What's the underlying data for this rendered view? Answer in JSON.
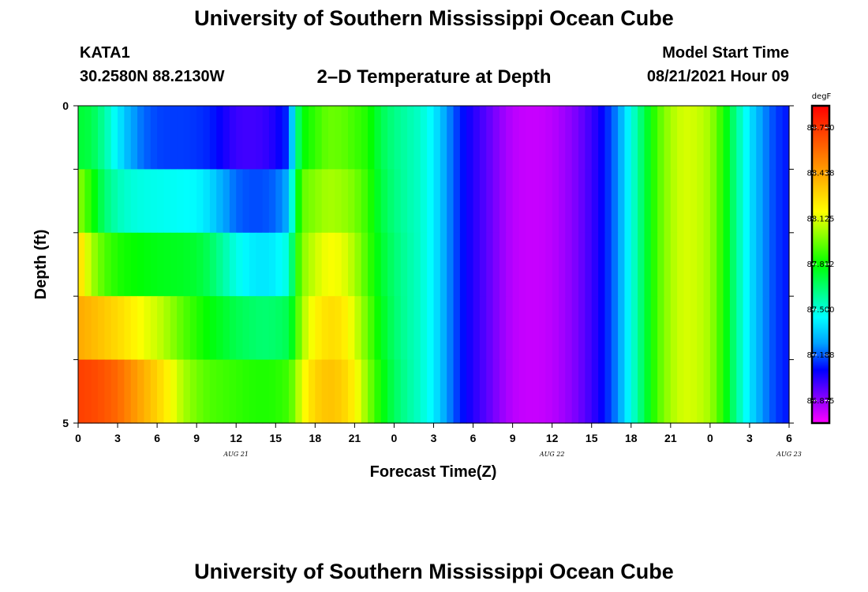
{
  "header": {
    "title": "University of Southern Mississippi Ocean Cube",
    "station_id": "KATA1",
    "coords": "30.2580N  88.2130W",
    "plot_title": "2–D Temperature at Depth",
    "model_start_label": "Model Start Time",
    "model_start_value": "08/21/2021 Hour 09"
  },
  "footer": {
    "title": "University of Southern Mississippi Ocean Cube"
  },
  "chart_data": {
    "type": "heatmap",
    "title": "2–D Temperature at Depth",
    "xlabel": "Forecast Time(Z)",
    "ylabel": "Depth (ft)",
    "x_tick_labels": [
      "0",
      "3",
      "6",
      "9",
      "12",
      "15",
      "18",
      "21",
      "0",
      "3",
      "6",
      "9",
      "12",
      "15",
      "18",
      "21",
      "0",
      "3",
      "6"
    ],
    "x_date_labels": [
      {
        "label": "AUG  21",
        "hour": 12
      },
      {
        "label": "AUG  22",
        "hour": 36
      },
      {
        "label": "AUG  23",
        "hour": 54
      }
    ],
    "x_range_hours": [
      0,
      54
    ],
    "y_tick_labels": [
      "0",
      "5"
    ],
    "y_range": [
      0,
      5
    ],
    "colorbar": {
      "unit": "degF",
      "min": 86.72,
      "max": 88.9,
      "labels": [
        "88.750",
        "88.438",
        "88.125",
        "87.812",
        "87.500",
        "87.188",
        "86.875"
      ],
      "colors": [
        "#ff00ff",
        "#8000ff",
        "#0000ff",
        "#00a0ff",
        "#00ffff",
        "#00ff80",
        "#00ff00",
        "#80ff00",
        "#ffff00",
        "#ffc000",
        "#ff8000",
        "#ff4000",
        "#ff0000"
      ]
    },
    "layers": [
      {
        "depth": 0.5,
        "points": [
          [
            0,
            87.74
          ],
          [
            1,
            87.71
          ],
          [
            2,
            87.58
          ],
          [
            3,
            87.42
          ],
          [
            4,
            87.28
          ],
          [
            5,
            87.2
          ],
          [
            6,
            87.16
          ],
          [
            7,
            87.15
          ],
          [
            8,
            87.15
          ],
          [
            9,
            87.14
          ],
          [
            10,
            87.12
          ],
          [
            11,
            87.06
          ],
          [
            12,
            87.0
          ],
          [
            13,
            86.99
          ],
          [
            14,
            87.0
          ],
          [
            15,
            87.05
          ],
          [
            16,
            87.14
          ],
          [
            16.5,
            87.55
          ],
          [
            17,
            87.8
          ],
          [
            18,
            87.88
          ],
          [
            19,
            87.96
          ],
          [
            20,
            87.95
          ],
          [
            21,
            87.9
          ],
          [
            22,
            87.85
          ],
          [
            23,
            87.7
          ],
          [
            24,
            87.62
          ],
          [
            25,
            87.57
          ],
          [
            26,
            87.52
          ],
          [
            27,
            87.42
          ],
          [
            28,
            87.26
          ],
          [
            29,
            87.12
          ],
          [
            30,
            87.03
          ],
          [
            31,
            86.96
          ],
          [
            32,
            86.88
          ],
          [
            33,
            86.82
          ],
          [
            34,
            86.8
          ],
          [
            35,
            86.8
          ],
          [
            36,
            86.82
          ],
          [
            37,
            86.86
          ],
          [
            38,
            86.92
          ],
          [
            39,
            87.0
          ],
          [
            40,
            87.1
          ],
          [
            41,
            87.25
          ],
          [
            42,
            87.48
          ],
          [
            43,
            87.7
          ],
          [
            44,
            87.92
          ],
          [
            45,
            88.05
          ],
          [
            46,
            88.12
          ],
          [
            47,
            88.1
          ],
          [
            48,
            88.04
          ],
          [
            49,
            87.85
          ],
          [
            50,
            87.6
          ],
          [
            51,
            87.4
          ],
          [
            52,
            87.25
          ],
          [
            53,
            87.15
          ],
          [
            54,
            87.1
          ]
        ]
      },
      {
        "depth": 1.5,
        "points": [
          [
            0,
            88.02
          ],
          [
            1,
            87.85
          ],
          [
            2,
            87.65
          ],
          [
            3,
            87.55
          ],
          [
            4,
            87.5
          ],
          [
            5,
            87.48
          ],
          [
            6,
            87.47
          ],
          [
            7,
            87.46
          ],
          [
            8,
            87.45
          ],
          [
            9,
            87.44
          ],
          [
            10,
            87.38
          ],
          [
            11,
            87.28
          ],
          [
            12,
            87.2
          ],
          [
            13,
            87.17
          ],
          [
            14,
            87.17
          ],
          [
            15,
            87.2
          ],
          [
            16,
            87.3
          ],
          [
            16.5,
            87.7
          ],
          [
            17,
            87.95
          ],
          [
            18,
            88.0
          ],
          [
            19,
            88.05
          ],
          [
            20,
            88.03
          ],
          [
            21,
            87.98
          ],
          [
            22,
            87.88
          ],
          [
            23,
            87.72
          ],
          [
            24,
            87.63
          ],
          [
            25,
            87.57
          ],
          [
            26,
            87.52
          ],
          [
            27,
            87.42
          ],
          [
            28,
            87.26
          ],
          [
            29,
            87.12
          ],
          [
            30,
            87.03
          ],
          [
            31,
            86.96
          ],
          [
            32,
            86.88
          ],
          [
            33,
            86.82
          ],
          [
            34,
            86.8
          ],
          [
            35,
            86.8
          ],
          [
            36,
            86.82
          ],
          [
            37,
            86.86
          ],
          [
            38,
            86.92
          ],
          [
            39,
            87.0
          ],
          [
            40,
            87.1
          ],
          [
            41,
            87.25
          ],
          [
            42,
            87.48
          ],
          [
            43,
            87.7
          ],
          [
            44,
            87.92
          ],
          [
            45,
            88.05
          ],
          [
            46,
            88.12
          ],
          [
            47,
            88.1
          ],
          [
            48,
            88.04
          ],
          [
            49,
            87.85
          ],
          [
            50,
            87.6
          ],
          [
            51,
            87.4
          ],
          [
            52,
            87.25
          ],
          [
            53,
            87.15
          ],
          [
            54,
            87.1
          ]
        ]
      },
      {
        "depth": 2.5,
        "points": [
          [
            0,
            88.3
          ],
          [
            1,
            88.05
          ],
          [
            2,
            87.92
          ],
          [
            3,
            87.85
          ],
          [
            4,
            87.82
          ],
          [
            5,
            87.8
          ],
          [
            6,
            87.78
          ],
          [
            7,
            87.77
          ],
          [
            8,
            87.76
          ],
          [
            9,
            87.74
          ],
          [
            10,
            87.68
          ],
          [
            11,
            87.58
          ],
          [
            12,
            87.48
          ],
          [
            13,
            87.42
          ],
          [
            14,
            87.4
          ],
          [
            15,
            87.42
          ],
          [
            16,
            87.5
          ],
          [
            16.5,
            87.8
          ],
          [
            17,
            88.0
          ],
          [
            18,
            88.1
          ],
          [
            19,
            88.17
          ],
          [
            20,
            88.15
          ],
          [
            21,
            88.05
          ],
          [
            22,
            87.9
          ],
          [
            23,
            87.75
          ],
          [
            24,
            87.65
          ],
          [
            25,
            87.58
          ],
          [
            26,
            87.52
          ],
          [
            27,
            87.42
          ],
          [
            28,
            87.26
          ],
          [
            29,
            87.12
          ],
          [
            30,
            87.03
          ],
          [
            31,
            86.96
          ],
          [
            32,
            86.88
          ],
          [
            33,
            86.82
          ],
          [
            34,
            86.8
          ],
          [
            35,
            86.8
          ],
          [
            36,
            86.82
          ],
          [
            37,
            86.86
          ],
          [
            38,
            86.92
          ],
          [
            39,
            87.0
          ],
          [
            40,
            87.1
          ],
          [
            41,
            87.25
          ],
          [
            42,
            87.48
          ],
          [
            43,
            87.7
          ],
          [
            44,
            87.92
          ],
          [
            45,
            88.05
          ],
          [
            46,
            88.12
          ],
          [
            47,
            88.1
          ],
          [
            48,
            88.04
          ],
          [
            49,
            87.85
          ],
          [
            50,
            87.6
          ],
          [
            51,
            87.4
          ],
          [
            52,
            87.25
          ],
          [
            53,
            87.15
          ],
          [
            54,
            87.1
          ]
        ]
      },
      {
        "depth": 3.5,
        "points": [
          [
            0,
            88.42
          ],
          [
            1,
            88.38
          ],
          [
            2,
            88.33
          ],
          [
            3,
            88.28
          ],
          [
            4,
            88.22
          ],
          [
            5,
            88.15
          ],
          [
            6,
            88.1
          ],
          [
            7,
            88.02
          ],
          [
            8,
            87.93
          ],
          [
            9,
            87.86
          ],
          [
            10,
            87.8
          ],
          [
            11,
            87.75
          ],
          [
            12,
            87.7
          ],
          [
            13,
            87.67
          ],
          [
            14,
            87.65
          ],
          [
            15,
            87.66
          ],
          [
            16,
            87.7
          ],
          [
            16.5,
            87.85
          ],
          [
            17,
            88.05
          ],
          [
            18,
            88.2
          ],
          [
            19,
            88.27
          ],
          [
            20,
            88.25
          ],
          [
            21,
            88.12
          ],
          [
            22,
            87.95
          ],
          [
            23,
            87.78
          ],
          [
            24,
            87.66
          ],
          [
            25,
            87.58
          ],
          [
            26,
            87.52
          ],
          [
            27,
            87.42
          ],
          [
            28,
            87.26
          ],
          [
            29,
            87.12
          ],
          [
            30,
            87.03
          ],
          [
            31,
            86.96
          ],
          [
            32,
            86.88
          ],
          [
            33,
            86.82
          ],
          [
            34,
            86.8
          ],
          [
            35,
            86.8
          ],
          [
            36,
            86.82
          ],
          [
            37,
            86.86
          ],
          [
            38,
            86.92
          ],
          [
            39,
            87.0
          ],
          [
            40,
            87.1
          ],
          [
            41,
            87.25
          ],
          [
            42,
            87.48
          ],
          [
            43,
            87.7
          ],
          [
            44,
            87.92
          ],
          [
            45,
            88.05
          ],
          [
            46,
            88.12
          ],
          [
            47,
            88.1
          ],
          [
            48,
            88.04
          ],
          [
            49,
            87.85
          ],
          [
            50,
            87.6
          ],
          [
            51,
            87.4
          ],
          [
            52,
            87.25
          ],
          [
            53,
            87.15
          ],
          [
            54,
            87.1
          ]
        ]
      },
      {
        "depth": 4.5,
        "points": [
          [
            0,
            88.72
          ],
          [
            1,
            88.7
          ],
          [
            2,
            88.66
          ],
          [
            3,
            88.6
          ],
          [
            4,
            88.5
          ],
          [
            5,
            88.4
          ],
          [
            6,
            88.3
          ],
          [
            7,
            88.18
          ],
          [
            8,
            88.05
          ],
          [
            9,
            87.97
          ],
          [
            10,
            87.92
          ],
          [
            11,
            87.9
          ],
          [
            12,
            87.88
          ],
          [
            13,
            87.86
          ],
          [
            14,
            87.85
          ],
          [
            15,
            87.86
          ],
          [
            16,
            87.9
          ],
          [
            16.5,
            88.0
          ],
          [
            17,
            88.15
          ],
          [
            18,
            88.3
          ],
          [
            19,
            88.35
          ],
          [
            20,
            88.32
          ],
          [
            21,
            88.2
          ],
          [
            22,
            88.0
          ],
          [
            23,
            87.82
          ],
          [
            24,
            87.68
          ],
          [
            25,
            87.59
          ],
          [
            26,
            87.52
          ],
          [
            27,
            87.42
          ],
          [
            28,
            87.26
          ],
          [
            29,
            87.12
          ],
          [
            30,
            87.03
          ],
          [
            31,
            86.96
          ],
          [
            32,
            86.88
          ],
          [
            33,
            86.82
          ],
          [
            34,
            86.8
          ],
          [
            35,
            86.8
          ],
          [
            36,
            86.82
          ],
          [
            37,
            86.86
          ],
          [
            38,
            86.92
          ],
          [
            39,
            87.0
          ],
          [
            40,
            87.1
          ],
          [
            41,
            87.25
          ],
          [
            42,
            87.48
          ],
          [
            43,
            87.7
          ],
          [
            44,
            87.92
          ],
          [
            45,
            88.05
          ],
          [
            46,
            88.12
          ],
          [
            47,
            88.1
          ],
          [
            48,
            88.04
          ],
          [
            49,
            87.85
          ],
          [
            50,
            87.6
          ],
          [
            51,
            87.4
          ],
          [
            52,
            87.25
          ],
          [
            53,
            87.15
          ],
          [
            54,
            87.1
          ]
        ]
      }
    ]
  }
}
